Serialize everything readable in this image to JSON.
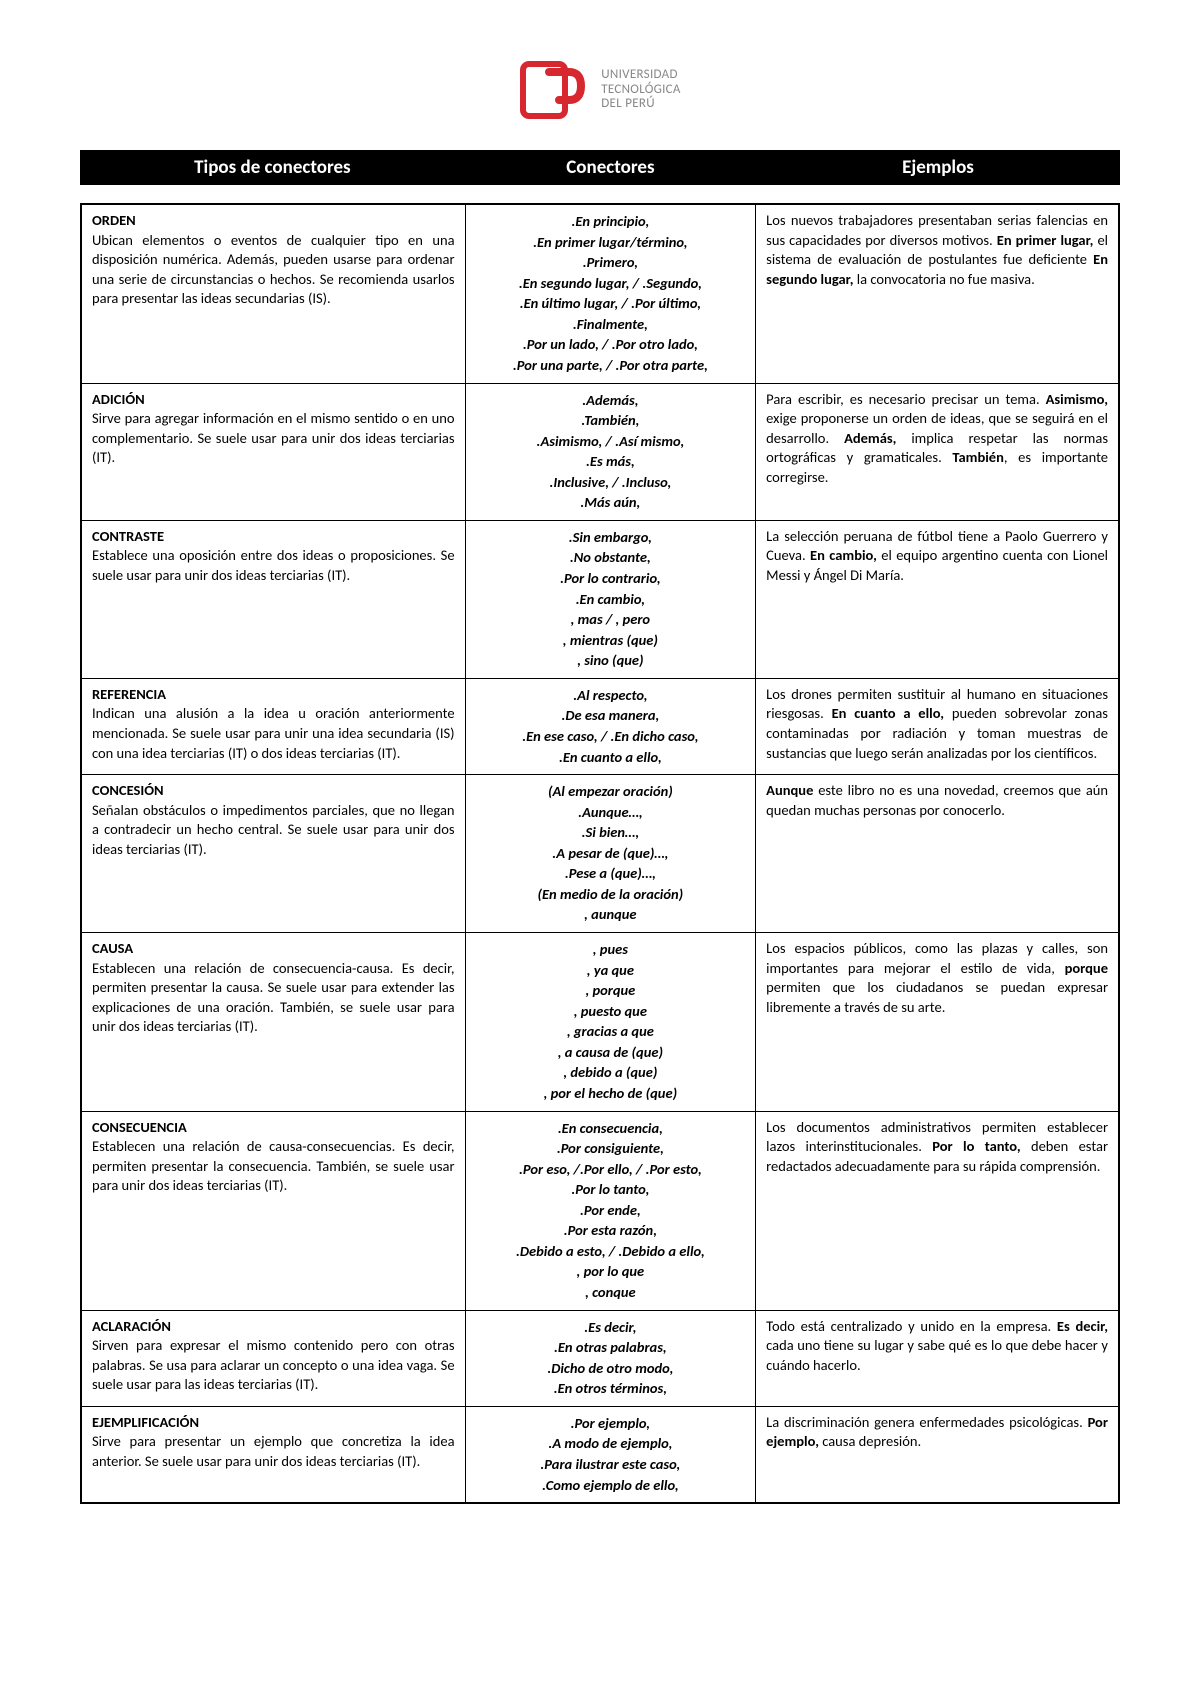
{
  "logo": {
    "brand_color": "#d7282f",
    "line1": "UNIVERSIDAD",
    "line2": "TECNOLÓGICA",
    "line3": "DEL PERÚ"
  },
  "header": {
    "col1": "Tipos de conectores",
    "col2": "Conectores",
    "col3": "Ejemplos"
  },
  "rows": [
    {
      "title": "ORDEN",
      "desc": "Ubican elementos o eventos de cualquier tipo en una disposición numérica. Además, pueden usarse para ordenar una serie de circunstancias o hechos. Se recomienda usarlos para presentar las ideas secundarias (IS).",
      "connectors": [
        ".En principio,",
        ".En primer lugar/término,",
        ".Primero,",
        ".En segundo lugar, / .Segundo,",
        ".En último lugar, / .Por último,",
        ".Finalmente,",
        ".Por un lado, / .Por otro lado,",
        ".Por una parte, / .Por otra parte,"
      ],
      "example_html": "Los nuevos trabajadores presentaban serias falencias en sus capacidades por diversos motivos. <b>En primer lugar,</b> el sistema de evaluación de postulantes fue deficiente <b>En segundo lugar,</b> la convocatoria no fue masiva."
    },
    {
      "title": "ADICIÓN",
      "desc": "Sirve para agregar información en el mismo sentido o en uno complementario. Se suele usar para unir dos ideas terciarias (IT).",
      "connectors": [
        ".Además,",
        ".También,",
        ".Asimismo, / .Así mismo,",
        ".Es más,",
        ".Inclusive, / .Incluso,",
        ".Más aún,"
      ],
      "example_html": "Para escribir, es necesario precisar un tema. <b>Asimismo,</b> exige proponerse un orden de ideas, que se seguirá en el desarrollo. <b>Además,</b> implica respetar las normas ortográficas y gramaticales. <b>También</b>, es importante corregirse."
    },
    {
      "title": "CONTRASTE",
      "desc": "Establece una oposición entre dos ideas o proposiciones. Se suele usar para unir dos ideas terciarias (IT).",
      "connectors": [
        ".Sin embargo,",
        ".No obstante,",
        ".Por lo contrario,",
        ".En cambio,",
        ", mas / , pero",
        ", mientras (que)",
        ", sino (que)"
      ],
      "example_html": "La selección peruana de fútbol tiene a Paolo Guerrero y Cueva. <b>En cambio,</b> el equipo argentino cuenta con Lionel Messi y Ángel Di María."
    },
    {
      "title": "REFERENCIA",
      "desc": "Indican una alusión a la idea u oración anteriormente mencionada. Se suele usar para unir una idea secundaria (IS) con una idea terciarias (IT) o dos ideas terciarias (IT).",
      "connectors": [
        ".Al respecto,",
        ".De esa manera,",
        ".En ese caso, / .En dicho caso,",
        ".En cuanto a ello,"
      ],
      "example_html": "Los drones permiten sustituir al humano en situaciones riesgosas. <b>En cuanto a ello,</b> pueden sobrevolar zonas contaminadas por radiación y toman muestras de sustancias que luego serán analizadas por los científicos."
    },
    {
      "title": "CONCESIÓN",
      "desc": "Señalan obstáculos o impedimentos parciales, que no llegan a contradecir un hecho central. Se suele usar para unir dos ideas terciarias (IT).",
      "connectors": [
        "(Al empezar oración)",
        ".Aunque…,",
        ".Si bien…,",
        ".A pesar de (que)…,",
        ".Pese a (que)…,",
        "(En medio de la oración)",
        ", aunque"
      ],
      "example_html": "<b>Aunque</b> este libro no es una novedad, creemos que aún quedan muchas personas por conocerlo."
    },
    {
      "title": "CAUSA",
      "desc": "Establecen una relación de consecuencia-causa. Es decir, permiten presentar la causa. Se suele usar para extender las explicaciones de una oración. También, se suele usar para unir dos ideas terciarias (IT).",
      "connectors": [
        ", pues",
        ", ya que",
        ", porque",
        ", puesto que",
        ", gracias a que",
        ", a causa de (que)",
        ", debido a (que)",
        ", por el hecho de (que)"
      ],
      "example_html": "Los espacios públicos, como las plazas y calles, son importantes para mejorar el estilo de vida, <b>porque</b> permiten que los ciudadanos se puedan expresar libremente a través de su arte."
    },
    {
      "title": "CONSECUENCIA",
      "desc": "Establecen una relación de causa-consecuencias. Es decir, permiten presentar la consecuencia. También, se suele usar para unir dos ideas terciarias (IT).",
      "connectors": [
        ".En consecuencia,",
        ".Por consiguiente,",
        ".Por eso, /.Por ello, / .Por esto,",
        ".Por lo tanto,",
        ".Por ende,",
        ".Por esta razón,",
        ".Debido a esto, / .Debido a ello,",
        ", por lo que",
        ", conque"
      ],
      "example_html": "Los documentos administrativos permiten establecer lazos interinstitucionales. <b>Por lo tanto,</b> deben estar redactados adecuadamente para su rápida comprensión."
    },
    {
      "title": "ACLARACIÓN",
      "desc": "Sirven para expresar el mismo contenido pero con otras palabras. Se usa para aclarar un concepto o una idea vaga. Se suele usar para las ideas terciarias (IT).",
      "connectors": [
        ".Es decir,",
        ".En otras palabras,",
        ".Dicho de otro modo,",
        ".En otros términos,"
      ],
      "example_html": "Todo está centralizado y unido en la empresa. <b>Es decir,</b> cada uno tiene su lugar y sabe qué es lo que debe hacer y cuándo hacerlo."
    },
    {
      "title": "EJEMPLIFICACIÓN",
      "desc": "Sirve para presentar un ejemplo que concretiza la idea anterior. Se suele usar para unir dos ideas terciarias (IT).",
      "connectors": [
        ".Por ejemplo,",
        ".A modo de ejemplo,",
        ".Para ilustrar este caso,",
        ".Como ejemplo de ello,"
      ],
      "example_html": "La discriminación genera enfermedades psicológicas. <b>Por ejemplo,</b> causa depresión."
    }
  ]
}
